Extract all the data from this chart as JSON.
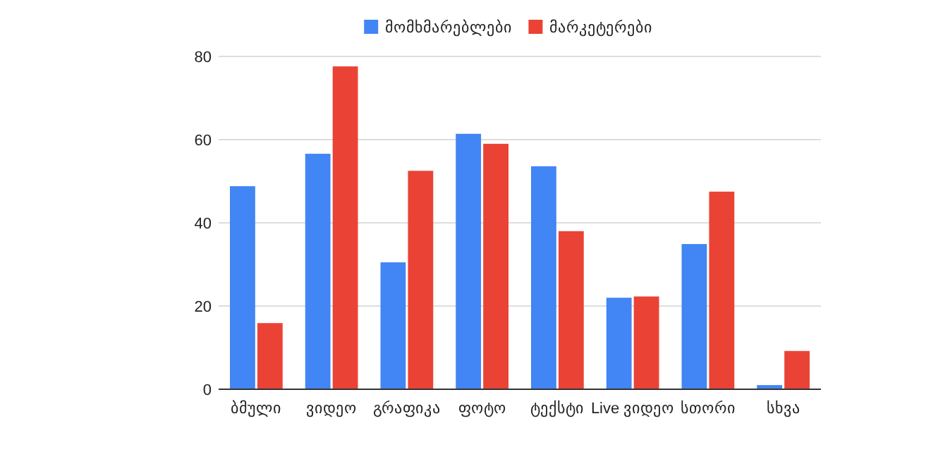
{
  "chart_data": {
    "type": "bar",
    "categories": [
      "ბმული",
      "ვიდეო",
      "გრაფიკა",
      "ფოტო",
      "ტექსტი",
      "Live ვიდეო",
      "სთორი",
      "სხვა"
    ],
    "series": [
      {
        "name": "მომხმარებლები",
        "color": "#4285f4",
        "values": [
          48.8,
          56.6,
          30.5,
          61.4,
          53.6,
          22,
          34.9,
          1
        ]
      },
      {
        "name": "მარკეტერები",
        "color": "#ea4335",
        "values": [
          15.9,
          77.6,
          52.5,
          59,
          38,
          22.3,
          47.5,
          9.2
        ]
      }
    ],
    "ylim": [
      0,
      80
    ],
    "yticks": [
      0,
      20,
      40,
      60,
      80
    ],
    "grid": "y",
    "legend": "top"
  }
}
